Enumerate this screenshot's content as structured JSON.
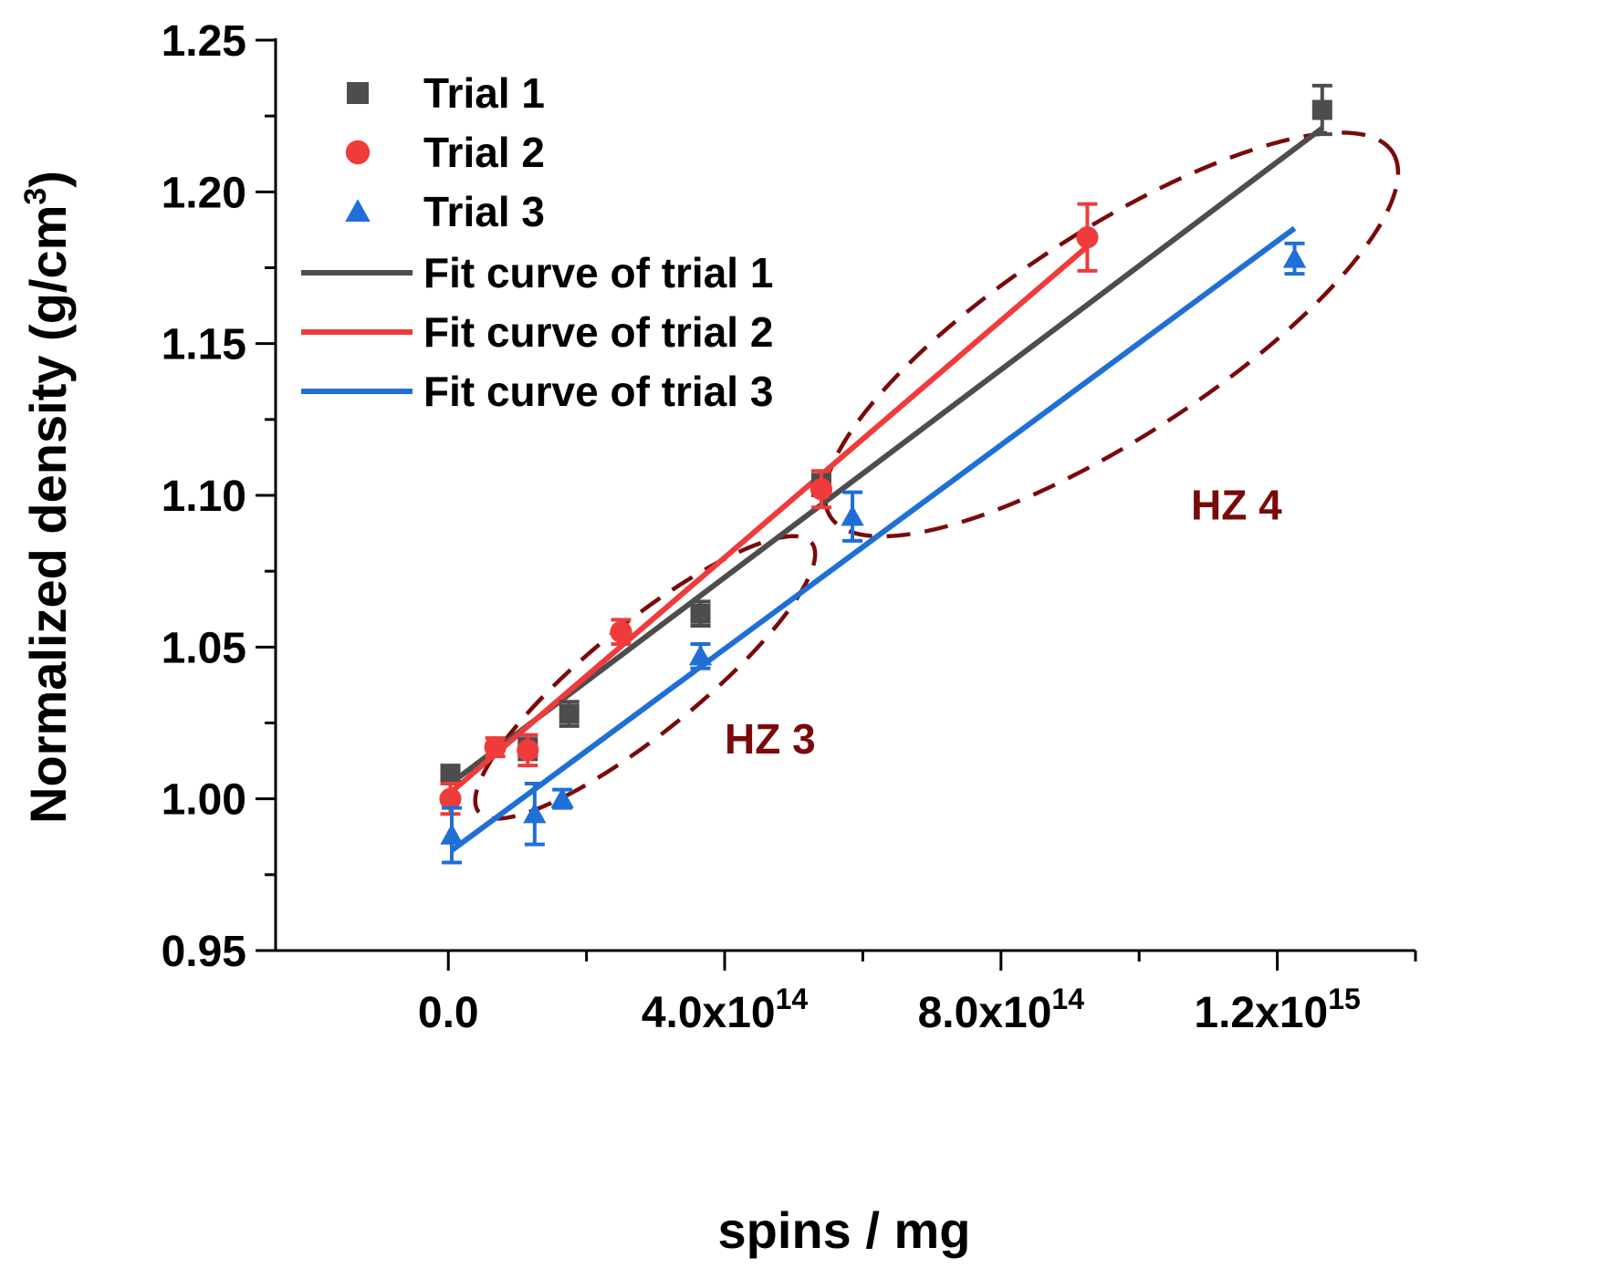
{
  "colors": {
    "trial1": "#4d4d4d",
    "trial2": "#ef3b3b",
    "trial3": "#1f6fd6",
    "zone": "#7a0a0a"
  },
  "chart_data": {
    "type": "scatter",
    "xlabel": "spins / mg",
    "ylabel": "Normalized density (g/cm",
    "ylabel_sup": "3",
    "ylabel_close": ")",
    "xlim": [
      -250000000000000.0,
      1400000000000000.0
    ],
    "ylim": [
      0.95,
      1.25
    ],
    "x_ticks": [
      {
        "value": 0,
        "base": "0.0",
        "exp": ""
      },
      {
        "value": 400000000000000.0,
        "base": "4.0x10",
        "exp": "14"
      },
      {
        "value": 800000000000000.0,
        "base": "8.0x10",
        "exp": "14"
      },
      {
        "value": 1200000000000000.0,
        "base": "1.2x10",
        "exp": "15"
      }
    ],
    "x_minor_ticks": [
      200000000000000.0,
      600000000000000.0,
      1000000000000000.0,
      1400000000000000.0
    ],
    "y_ticks": [
      {
        "value": 0.95,
        "label": "0.95"
      },
      {
        "value": 1.0,
        "label": "1.00"
      },
      {
        "value": 1.05,
        "label": "1.05"
      },
      {
        "value": 1.1,
        "label": "1.10"
      },
      {
        "value": 1.15,
        "label": "1.15"
      },
      {
        "value": 1.2,
        "label": "1.20"
      },
      {
        "value": 1.25,
        "label": "1.25"
      }
    ],
    "y_minor_ticks": [
      0.975,
      1.025,
      1.075,
      1.125,
      1.175,
      1.225
    ],
    "series": [
      {
        "name": "Trial 1",
        "marker": "square",
        "color": "#4d4d4d",
        "x": [
          3000000000000.0,
          115000000000000.0,
          175000000000000.0,
          365000000000000.0,
          540000000000000.0,
          1265000000000000.0
        ],
        "y": [
          1.008,
          1.017,
          1.028,
          1.061,
          1.104,
          1.227
        ],
        "err": [
          0.003,
          0.004,
          0.004,
          0.004,
          0.004,
          0.008
        ]
      },
      {
        "name": "Trial 2",
        "marker": "circle",
        "color": "#ef3b3b",
        "x": [
          3000000000000.0,
          68000000000000.0,
          115000000000000.0,
          250000000000000.0,
          540000000000000.0,
          925000000000000.0
        ],
        "y": [
          1.0,
          1.017,
          1.016,
          1.055,
          1.102,
          1.185
        ],
        "err": [
          0.005,
          0.003,
          0.005,
          0.004,
          0.006,
          0.011
        ]
      },
      {
        "name": "Trial 3",
        "marker": "triangle",
        "color": "#1f6fd6",
        "x": [
          5000000000000.0,
          125000000000000.0,
          165000000000000.0,
          365000000000000.0,
          585000000000000.0,
          1225000000000000.0
        ],
        "y": [
          0.988,
          0.995,
          1.0,
          1.047,
          1.093,
          1.178
        ],
        "err": [
          0.009,
          0.01,
          0.003,
          0.004,
          0.008,
          0.005
        ]
      }
    ],
    "fits": [
      {
        "name": "Fit curve of trial 1",
        "color": "#4d4d4d",
        "x": [
          3000000000000.0,
          1265000000000000.0
        ],
        "y": [
          1.005,
          1.221
        ]
      },
      {
        "name": "Fit curve of trial 2",
        "color": "#ef3b3b",
        "x": [
          3000000000000.0,
          925000000000000.0
        ],
        "y": [
          1.002,
          1.182
        ]
      },
      {
        "name": "Fit curve of trial 3",
        "color": "#1f6fd6",
        "x": [
          5000000000000.0,
          1225000000000000.0
        ],
        "y": [
          0.983,
          1.188
        ]
      }
    ],
    "legend_position": "top-left",
    "zones": [
      {
        "label": "HZ 3",
        "cx": 285000000000000.0,
        "cy": 1.04,
        "rx": 310000000000000.0,
        "ry": 0.018,
        "angle": -39,
        "label_x": 400000000000000.0,
        "label_y": 1.015
      },
      {
        "label": "HZ 4",
        "cx": 960000000000000.0,
        "cy": 1.153,
        "rx": 485000000000000.0,
        "ry": 0.034,
        "angle": -33,
        "label_x": 1075000000000000.0,
        "label_y": 1.092
      }
    ]
  }
}
